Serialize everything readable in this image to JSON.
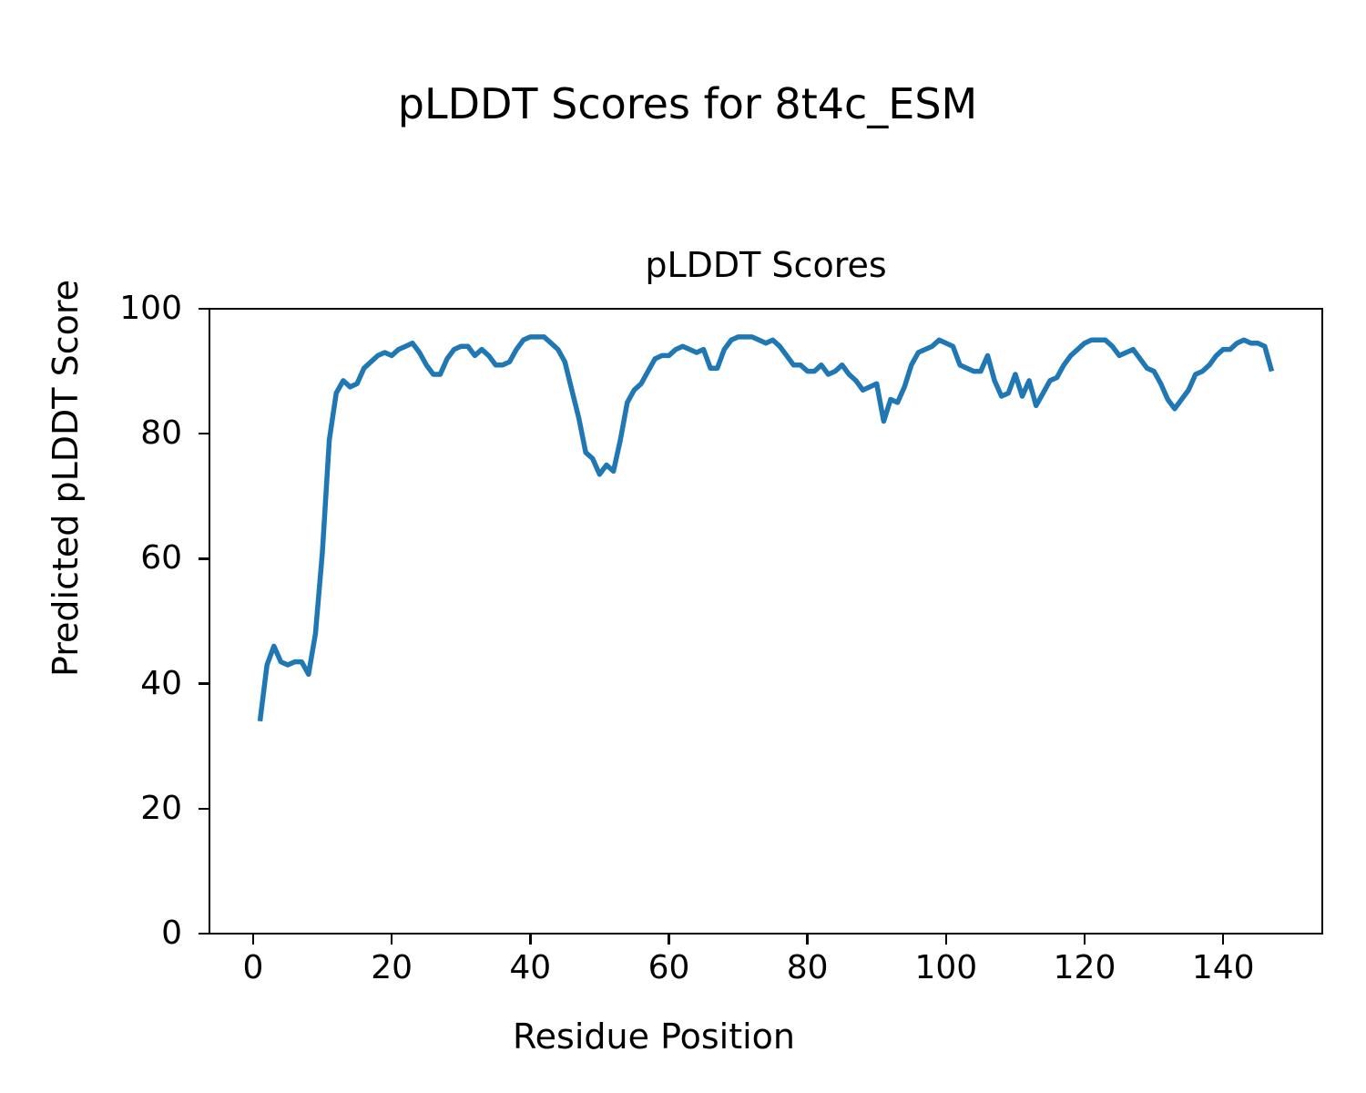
{
  "figure": {
    "suptitle": "pLDDT Scores for 8t4c_ESM",
    "background_color": "#ffffff",
    "text_color": "#000000"
  },
  "chart_data": {
    "type": "line",
    "title": "pLDDT Scores",
    "xlabel": "Residue Position",
    "ylabel": "Predicted pLDDT Score",
    "series_name": "pLDDT",
    "line_color": "#1f77b4",
    "grid": false,
    "legend_position": "none",
    "xlim": [
      -6.3,
      154.3
    ],
    "ylim": [
      0,
      100
    ],
    "xticks": [
      0,
      20,
      40,
      60,
      80,
      100,
      120,
      140
    ],
    "yticks": [
      0,
      20,
      40,
      60,
      80,
      100
    ],
    "x": [
      1,
      2,
      3,
      4,
      5,
      6,
      7,
      8,
      9,
      10,
      11,
      12,
      13,
      14,
      15,
      16,
      17,
      18,
      19,
      20,
      21,
      22,
      23,
      24,
      25,
      26,
      27,
      28,
      29,
      30,
      31,
      32,
      33,
      34,
      35,
      36,
      37,
      38,
      39,
      40,
      41,
      42,
      43,
      44,
      45,
      46,
      47,
      48,
      49,
      50,
      51,
      52,
      53,
      54,
      55,
      56,
      57,
      58,
      59,
      60,
      61,
      62,
      63,
      64,
      65,
      66,
      67,
      68,
      69,
      70,
      71,
      72,
      73,
      74,
      75,
      76,
      77,
      78,
      79,
      80,
      81,
      82,
      83,
      84,
      85,
      86,
      87,
      88,
      89,
      90,
      91,
      92,
      93,
      94,
      95,
      96,
      97,
      98,
      99,
      100,
      101,
      102,
      103,
      104,
      105,
      106,
      107,
      108,
      109,
      110,
      111,
      112,
      113,
      114,
      115,
      116,
      117,
      118,
      119,
      120,
      121,
      122,
      123,
      124,
      125,
      126,
      127,
      128,
      129,
      130,
      131,
      132,
      133,
      134,
      135,
      136,
      137,
      138,
      139,
      140,
      141,
      142,
      143,
      144,
      145,
      146,
      147
    ],
    "values": [
      34,
      43,
      46,
      43.5,
      43,
      43.5,
      43.5,
      41.5,
      48,
      61,
      79,
      86.5,
      88.5,
      87.5,
      88,
      90.5,
      91.5,
      92.5,
      93,
      92.5,
      93.5,
      94,
      94.5,
      93,
      91,
      89.5,
      89.5,
      92,
      93.5,
      94,
      94,
      92.5,
      93.5,
      92.5,
      91,
      91,
      91.5,
      93.5,
      95,
      95.5,
      95.5,
      95.5,
      94.5,
      93.5,
      91.5,
      87,
      82.5,
      77,
      76,
      73.5,
      75,
      74,
      79,
      85,
      87,
      88,
      90,
      92,
      92.5,
      92.5,
      93.5,
      94,
      93.5,
      93,
      93.5,
      90.5,
      90.5,
      93.5,
      95,
      95.5,
      95.5,
      95.5,
      95,
      94.5,
      95,
      94,
      92.5,
      91,
      91,
      90,
      90,
      91,
      89.5,
      90,
      91,
      89.5,
      88.5,
      87,
      87.5,
      88,
      82,
      85.5,
      85,
      87.5,
      91,
      93,
      93.5,
      94,
      95,
      94.5,
      94,
      91,
      90.5,
      90,
      90,
      92.5,
      88.5,
      86,
      86.5,
      89.5,
      86,
      88.5,
      84.5,
      86.5,
      88.5,
      89,
      91,
      92.5,
      93.5,
      94.5,
      95,
      95,
      95,
      94,
      92.5,
      93,
      93.5,
      92,
      90.5,
      90,
      88,
      85.5,
      84,
      85.5,
      87,
      89.5,
      90,
      91,
      92.5,
      93.5,
      93.5,
      94.5,
      95,
      94.5,
      94.5,
      94,
      90
    ]
  }
}
